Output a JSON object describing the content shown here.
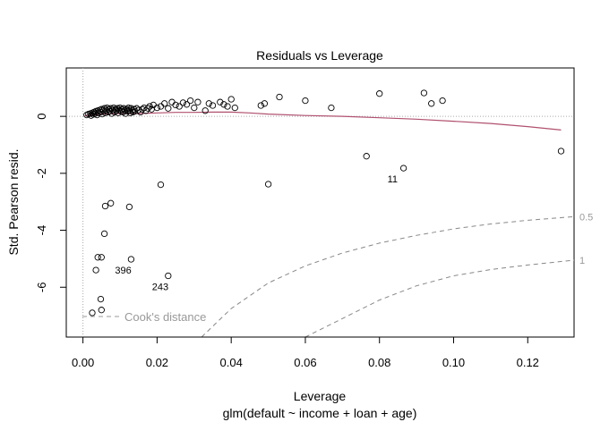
{
  "chart_data": {
    "type": "scatter",
    "title": "Residuals vs Leverage",
    "xlabel": "Leverage",
    "subtitle": "glm(default ~ income + loan + age)",
    "ylabel": "Std. Pearson resid.",
    "xlim": [
      -0.0045,
      0.1325
    ],
    "ylim": [
      -7.75,
      1.7
    ],
    "xticks": [
      0,
      0.02,
      0.04,
      0.06,
      0.08,
      0.1,
      0.12
    ],
    "xtick_labels": [
      "0.00",
      "0.02",
      "0.04",
      "0.06",
      "0.08",
      "0.10",
      "0.12"
    ],
    "yticks": [
      0,
      -2,
      -4,
      -6
    ],
    "ytick_labels": [
      "0",
      "-2",
      "-4",
      "-6"
    ],
    "points": [
      [
        0.001,
        0.05
      ],
      [
        0.0015,
        0.08
      ],
      [
        0.002,
        0.1
      ],
      [
        0.0022,
        0.03
      ],
      [
        0.0025,
        0.12
      ],
      [
        0.0028,
        0.07
      ],
      [
        0.003,
        0.15
      ],
      [
        0.0033,
        0.1
      ],
      [
        0.0035,
        0.18
      ],
      [
        0.0038,
        0.05
      ],
      [
        0.004,
        0.2
      ],
      [
        0.0042,
        0.12
      ],
      [
        0.0045,
        0.22
      ],
      [
        0.0048,
        0.15
      ],
      [
        0.005,
        0.25
      ],
      [
        0.0052,
        0.08
      ],
      [
        0.0055,
        0.2
      ],
      [
        0.0058,
        0.28
      ],
      [
        0.006,
        0.12
      ],
      [
        0.0062,
        0.22
      ],
      [
        0.0065,
        0.3
      ],
      [
        0.0068,
        0.15
      ],
      [
        0.007,
        0.25
      ],
      [
        0.0072,
        0.18
      ],
      [
        0.0075,
        0.28
      ],
      [
        0.0078,
        0.1
      ],
      [
        0.008,
        0.22
      ],
      [
        0.0083,
        0.3
      ],
      [
        0.0085,
        0.15
      ],
      [
        0.0088,
        0.25
      ],
      [
        0.009,
        0.2
      ],
      [
        0.0093,
        0.28
      ],
      [
        0.0095,
        0.12
      ],
      [
        0.0098,
        0.22
      ],
      [
        0.01,
        0.3
      ],
      [
        0.0103,
        0.18
      ],
      [
        0.0105,
        0.25
      ],
      [
        0.0108,
        0.15
      ],
      [
        0.011,
        0.28
      ],
      [
        0.0113,
        0.2
      ],
      [
        0.0115,
        0.1
      ],
      [
        0.0118,
        0.25
      ],
      [
        0.012,
        0.18
      ],
      [
        0.0123,
        0.3
      ],
      [
        0.0125,
        0.22
      ],
      [
        0.0128,
        0.12
      ],
      [
        0.013,
        0.28
      ],
      [
        0.0133,
        0.2
      ],
      [
        0.0135,
        0.15
      ],
      [
        0.0138,
        0.25
      ],
      [
        0.014,
        0.18
      ],
      [
        0.0145,
        0.28
      ],
      [
        0.015,
        0.22
      ],
      [
        0.0155,
        0.15
      ],
      [
        0.016,
        0.25
      ],
      [
        0.0165,
        0.3
      ],
      [
        0.017,
        0.2
      ],
      [
        0.0175,
        0.28
      ],
      [
        0.018,
        0.35
      ],
      [
        0.0185,
        0.25
      ],
      [
        0.019,
        0.4
      ],
      [
        0.02,
        0.3
      ],
      [
        0.021,
        0.35
      ],
      [
        0.022,
        0.45
      ],
      [
        0.023,
        0.28
      ],
      [
        0.024,
        0.5
      ],
      [
        0.025,
        0.4
      ],
      [
        0.026,
        0.35
      ],
      [
        0.027,
        0.48
      ],
      [
        0.028,
        0.42
      ],
      [
        0.029,
        0.55
      ],
      [
        0.03,
        0.3
      ],
      [
        0.031,
        0.5
      ],
      [
        0.033,
        0.2
      ],
      [
        0.034,
        0.45
      ],
      [
        0.035,
        0.38
      ],
      [
        0.037,
        0.5
      ],
      [
        0.038,
        0.42
      ],
      [
        0.039,
        0.35
      ],
      [
        0.04,
        0.6
      ],
      [
        0.041,
        0.3
      ],
      [
        0.048,
        0.38
      ],
      [
        0.049,
        0.45
      ],
      [
        0.053,
        0.68
      ],
      [
        0.06,
        0.55
      ],
      [
        0.067,
        0.3
      ],
      [
        0.08,
        0.8
      ],
      [
        0.092,
        0.82
      ],
      [
        0.094,
        0.45
      ],
      [
        0.097,
        0.55
      ],
      [
        0.129,
        -1.22
      ],
      [
        0.0765,
        -1.4
      ],
      [
        0.0865,
        -1.82
      ],
      [
        0.05,
        -2.38
      ],
      [
        0.021,
        -2.4
      ],
      [
        0.0075,
        -3.05
      ],
      [
        0.006,
        -3.15
      ],
      [
        0.0125,
        -3.18
      ],
      [
        0.0058,
        -4.12
      ],
      [
        0.004,
        -4.95
      ],
      [
        0.005,
        -4.95
      ],
      [
        0.013,
        -5.02
      ],
      [
        0.0035,
        -5.4
      ],
      [
        0.023,
        -5.6
      ],
      [
        0.0048,
        -6.42
      ],
      [
        0.005,
        -6.8
      ],
      [
        0.0025,
        -6.9
      ]
    ],
    "point_labels": [
      {
        "text": "11",
        "x": 0.0865,
        "y": -1.82
      },
      {
        "text": "396",
        "x": 0.013,
        "y": -5.02
      },
      {
        "text": "243",
        "x": 0.023,
        "y": -5.6
      }
    ],
    "smooth_line": [
      [
        0.0005,
        0.02
      ],
      [
        0.005,
        0.08
      ],
      [
        0.01,
        0.1
      ],
      [
        0.015,
        0.1
      ],
      [
        0.02,
        0.12
      ],
      [
        0.025,
        0.14
      ],
      [
        0.03,
        0.14
      ],
      [
        0.035,
        0.15
      ],
      [
        0.04,
        0.15
      ],
      [
        0.045,
        0.12
      ],
      [
        0.05,
        0.08
      ],
      [
        0.06,
        0.03
      ],
      [
        0.07,
        0.0
      ],
      [
        0.08,
        -0.05
      ],
      [
        0.09,
        -0.1
      ],
      [
        0.1,
        -0.17
      ],
      [
        0.11,
        -0.25
      ],
      [
        0.12,
        -0.36
      ],
      [
        0.129,
        -0.48
      ]
    ],
    "cooks_legend_label": "Cook's distance",
    "cooks_curves": [
      {
        "label": "0.5",
        "points": [
          [
            0.032,
            -7.75
          ],
          [
            0.04,
            -6.75
          ],
          [
            0.05,
            -5.85
          ],
          [
            0.06,
            -5.25
          ],
          [
            0.07,
            -4.8
          ],
          [
            0.08,
            -4.45
          ],
          [
            0.09,
            -4.18
          ],
          [
            0.1,
            -3.95
          ],
          [
            0.11,
            -3.78
          ],
          [
            0.12,
            -3.65
          ],
          [
            0.1325,
            -3.52
          ]
        ]
      },
      {
        "label": "1",
        "points": [
          [
            0.06,
            -7.75
          ],
          [
            0.07,
            -7.1
          ],
          [
            0.08,
            -6.45
          ],
          [
            0.09,
            -5.95
          ],
          [
            0.1,
            -5.6
          ],
          [
            0.11,
            -5.38
          ],
          [
            0.12,
            -5.22
          ],
          [
            0.1325,
            -5.05
          ]
        ]
      }
    ]
  }
}
